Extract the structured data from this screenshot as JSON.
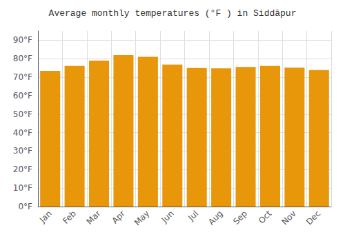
{
  "chart_data": {
    "type": "bar",
    "title": "Average monthly temperatures (°F ) in Siddāpur",
    "categories": [
      "Jan",
      "Feb",
      "Mar",
      "Apr",
      "May",
      "Jun",
      "Jul",
      "Aug",
      "Sep",
      "Oct",
      "Nov",
      "Dec"
    ],
    "values": [
      73.4,
      76.1,
      79.0,
      82.0,
      81.0,
      76.8,
      75.0,
      74.8,
      75.5,
      76.1,
      75.2,
      73.9
    ],
    "color": "#E8960A",
    "ylim": [
      0,
      95
    ],
    "yticks": [
      {
        "value": 0,
        "label": "0°F"
      },
      {
        "value": 10,
        "label": "10°F"
      },
      {
        "value": 20,
        "label": "20°F"
      },
      {
        "value": 30,
        "label": "30°F"
      },
      {
        "value": 40,
        "label": "40°F"
      },
      {
        "value": 50,
        "label": "50°F"
      },
      {
        "value": 60,
        "label": "60°F"
      },
      {
        "value": 70,
        "label": "70°F"
      },
      {
        "value": 80,
        "label": "80°F"
      },
      {
        "value": 90,
        "label": "90°F"
      }
    ],
    "grid": true
  }
}
